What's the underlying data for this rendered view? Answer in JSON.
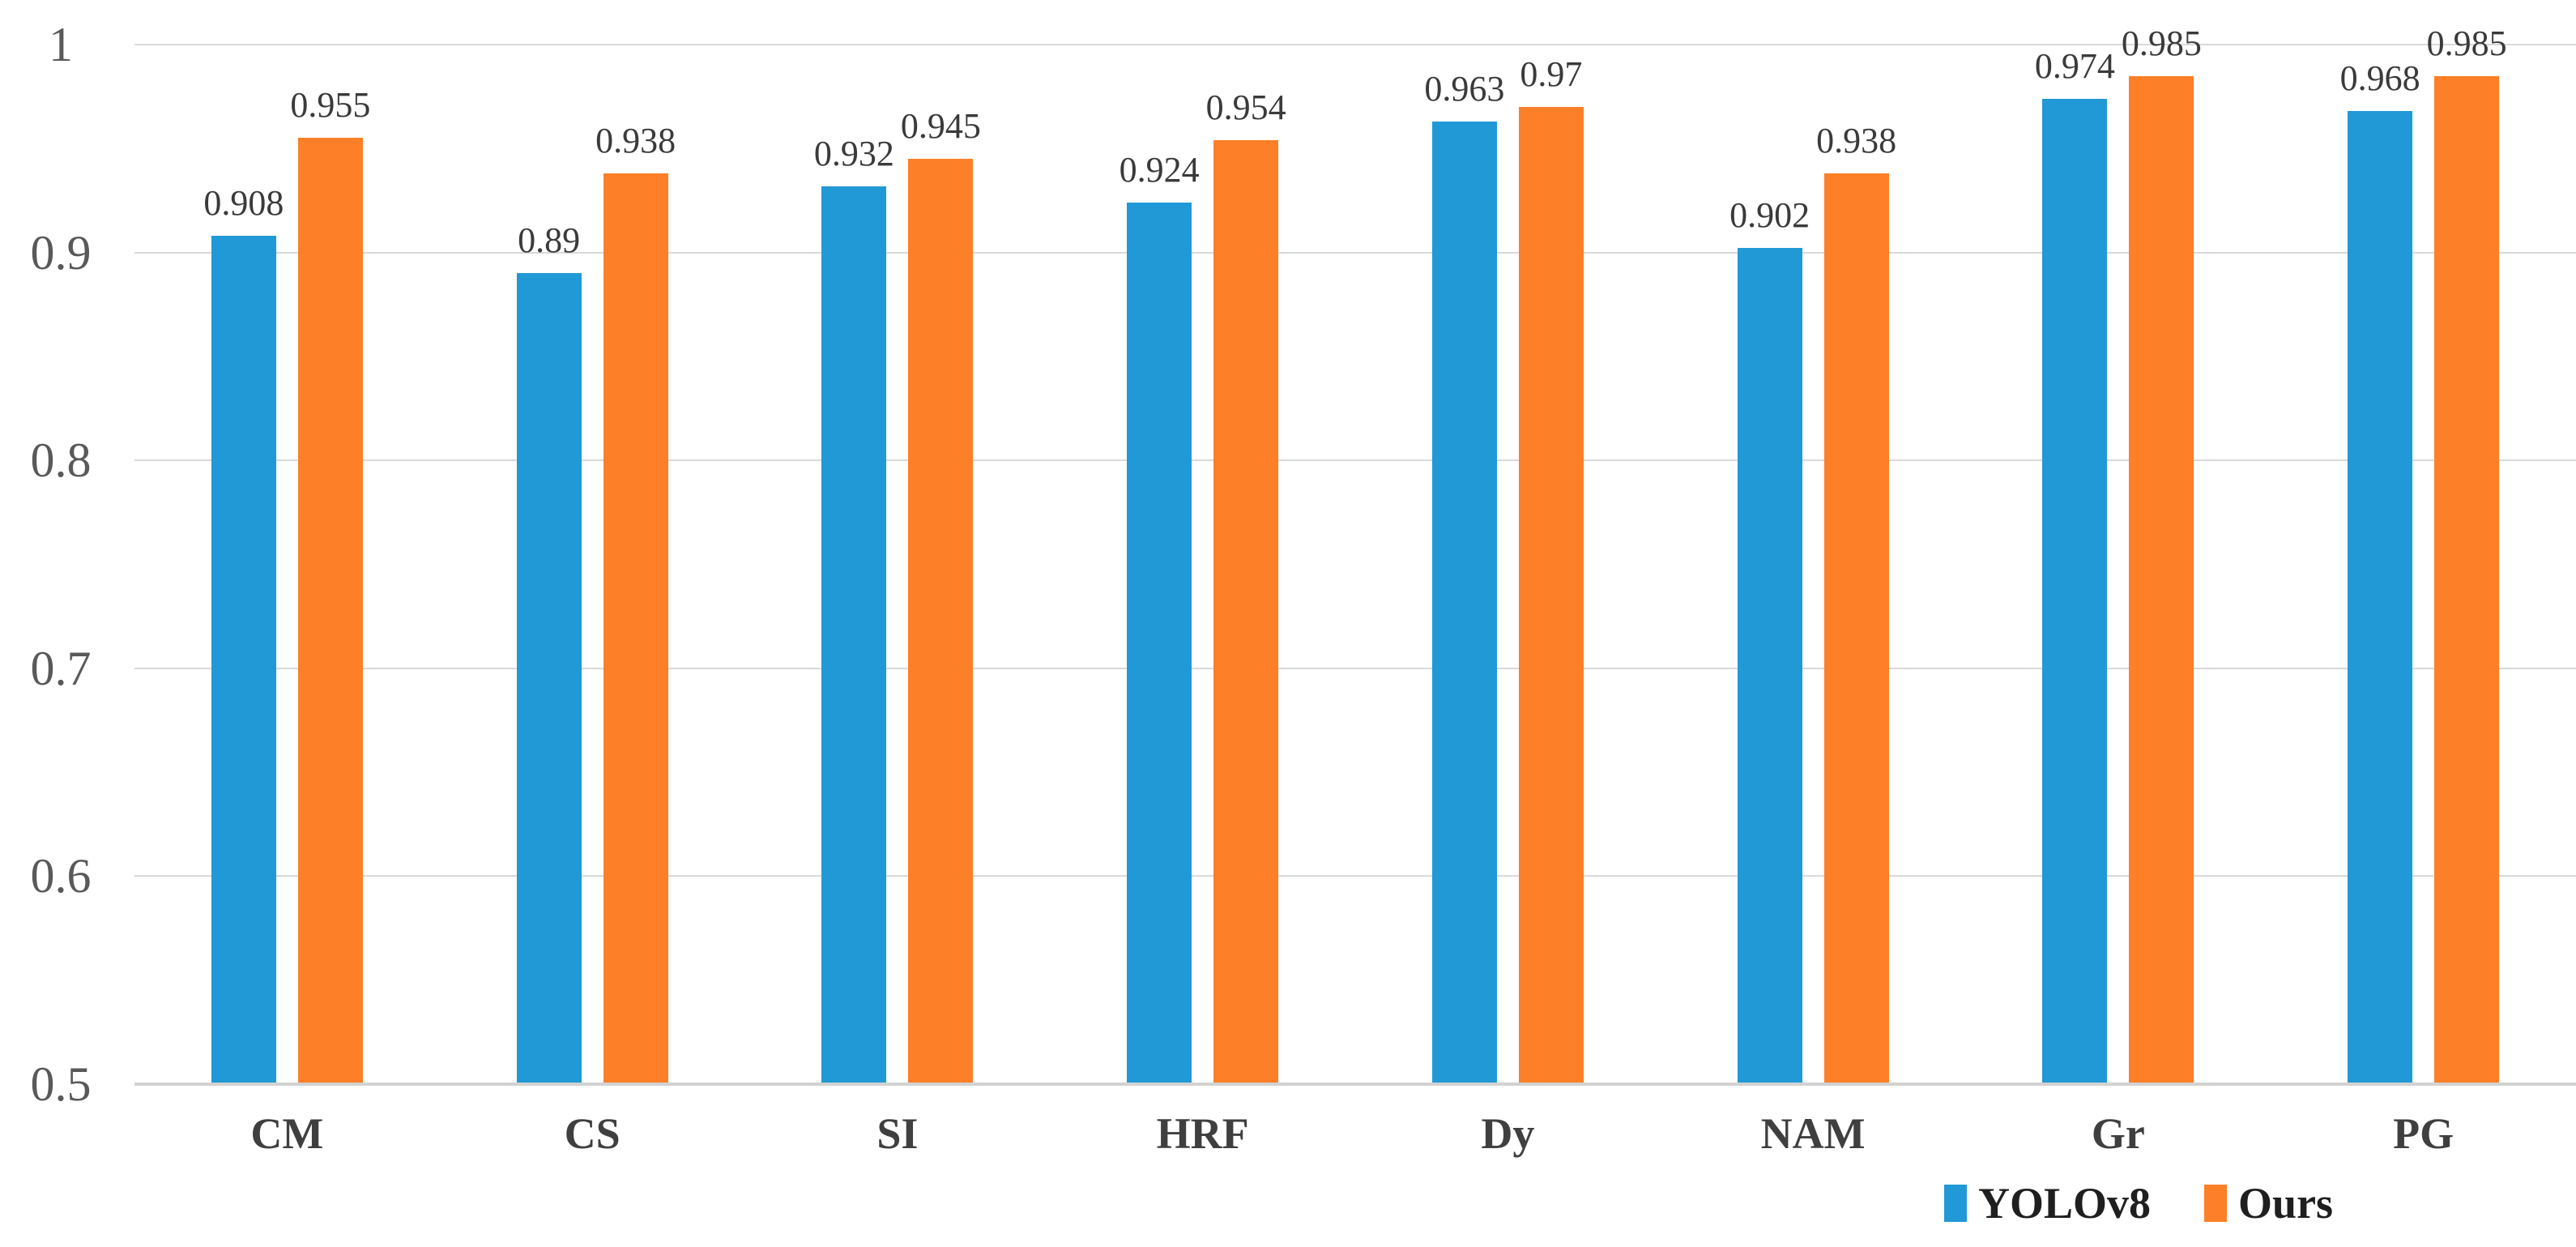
{
  "chart_data": {
    "type": "bar",
    "title": "",
    "xlabel": "",
    "ylabel": "",
    "categories": [
      "CM",
      "CS",
      "SI",
      "HRF",
      "Dy",
      "NAM",
      "Gr",
      "PG"
    ],
    "series": [
      {
        "name": "YOLOv8",
        "color": "#2199D6",
        "values": [
          0.908,
          0.89,
          0.932,
          0.924,
          0.963,
          0.902,
          0.974,
          0.968
        ],
        "labels": [
          "0.908",
          "0.89",
          "0.932",
          "0.924",
          "0.963",
          "0.902",
          "0.974",
          "0.968"
        ]
      },
      {
        "name": "Ours",
        "color": "#FD7F27",
        "values": [
          0.955,
          0.938,
          0.945,
          0.954,
          0.97,
          0.938,
          0.985,
          0.985
        ],
        "labels": [
          "0.955",
          "0.938",
          "0.945",
          "0.954",
          "0.97",
          "0.938",
          "0.985",
          "0.985"
        ]
      }
    ],
    "ylim": [
      0.5,
      1.0
    ],
    "yticks": [
      {
        "value": 1.0,
        "label": "1"
      },
      {
        "value": 0.9,
        "label": "0.9"
      },
      {
        "value": 0.8,
        "label": "0.8"
      },
      {
        "value": 0.7,
        "label": "0.7"
      },
      {
        "value": 0.6,
        "label": "0.6"
      },
      {
        "value": 0.5,
        "label": "0.5"
      }
    ],
    "grid": true,
    "legend_position": "bottom-right"
  },
  "colors": {
    "grid": "#D9D9D9",
    "axis_line": "#D2D2D2",
    "tick_text": "#595959",
    "category_text": "#3F3F3F",
    "data_label_text": "#3A3A3A",
    "legend_text": "#1F1F1F",
    "background": "#FFFFFF"
  }
}
